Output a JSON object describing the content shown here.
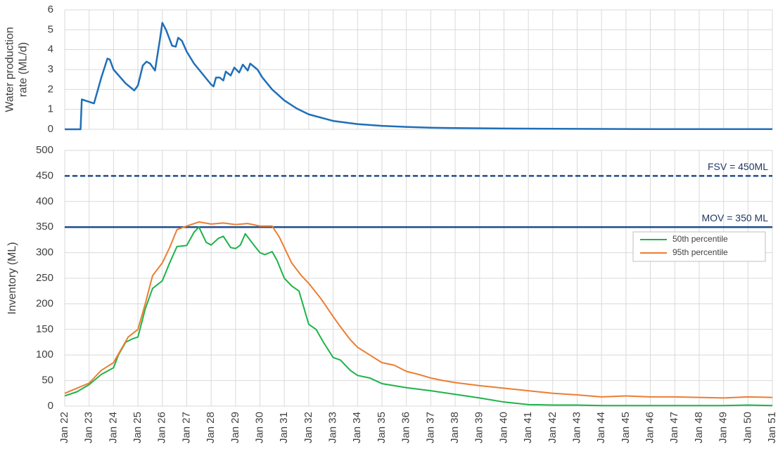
{
  "chart_data": [
    {
      "type": "line",
      "ylabel": [
        "Water production",
        "rate (ML/d)"
      ],
      "xlim": [
        2022,
        2051
      ],
      "xticks": [
        2022,
        2023,
        2024,
        2025,
        2026,
        2027,
        2028,
        2029,
        2030,
        2031,
        2032,
        2033,
        2034,
        2035,
        2036,
        2037,
        2038,
        2039,
        2040,
        2041,
        2042,
        2043,
        2044,
        2045,
        2046,
        2047,
        2048,
        2049,
        2050,
        2051
      ],
      "ylim": [
        0,
        6
      ],
      "yticks": [
        0,
        1,
        2,
        3,
        4,
        5,
        6
      ],
      "grid": true,
      "series": [
        {
          "color": "#1f6fb8",
          "x": [
            2022,
            2022.65,
            2022.7,
            2023.2,
            2023.5,
            2023.75,
            2023.85,
            2024.0,
            2024.5,
            2024.85,
            2025.0,
            2025.2,
            2025.35,
            2025.5,
            2025.7,
            2025.9,
            2026.0,
            2026.15,
            2026.4,
            2026.55,
            2026.65,
            2026.8,
            2027.0,
            2027.3,
            2027.7,
            2028.0,
            2028.1,
            2028.2,
            2028.35,
            2028.5,
            2028.6,
            2028.8,
            2028.95,
            2029.15,
            2029.3,
            2029.5,
            2029.6,
            2029.9,
            2030.1,
            2030.5,
            2031,
            2031.5,
            2032,
            2033,
            2034,
            2035,
            2036,
            2037,
            2038,
            2040,
            2043,
            2046,
            2051
          ],
          "values": [
            0,
            0,
            1.5,
            1.3,
            2.6,
            3.55,
            3.5,
            3.0,
            2.3,
            1.95,
            2.2,
            3.2,
            3.4,
            3.3,
            2.95,
            4.5,
            5.35,
            5.0,
            4.2,
            4.15,
            4.6,
            4.45,
            3.9,
            3.3,
            2.7,
            2.25,
            2.15,
            2.6,
            2.6,
            2.45,
            2.9,
            2.7,
            3.1,
            2.85,
            3.25,
            2.95,
            3.3,
            3.0,
            2.6,
            2.0,
            1.45,
            1.05,
            0.75,
            0.42,
            0.26,
            0.17,
            0.12,
            0.08,
            0.06,
            0.04,
            0.02,
            0.01,
            0.01
          ]
        }
      ]
    },
    {
      "type": "line",
      "ylabel": "Inventory  (ML)",
      "xlim": [
        2022,
        2051
      ],
      "xticks": [
        {
          "value": 2022,
          "label": "Jan 22"
        },
        {
          "value": 2023,
          "label": "Jan 23"
        },
        {
          "value": 2024,
          "label": "Jan 24"
        },
        {
          "value": 2025,
          "label": "Jan 25"
        },
        {
          "value": 2026,
          "label": "Jan 26"
        },
        {
          "value": 2027,
          "label": "Jan 27"
        },
        {
          "value": 2028,
          "label": "Jan 28"
        },
        {
          "value": 2029,
          "label": "Jan 29"
        },
        {
          "value": 2030,
          "label": "Jan 30"
        },
        {
          "value": 2031,
          "label": "Jan 31"
        },
        {
          "value": 2032,
          "label": "Jan 32"
        },
        {
          "value": 2033,
          "label": "Jan 33"
        },
        {
          "value": 2034,
          "label": "Jan 34"
        },
        {
          "value": 2035,
          "label": "Jan 35"
        },
        {
          "value": 2036,
          "label": "Jan 36"
        },
        {
          "value": 2037,
          "label": "Jan 37"
        },
        {
          "value": 2038,
          "label": "Jan 38"
        },
        {
          "value": 2039,
          "label": "Jan 39"
        },
        {
          "value": 2040,
          "label": "Jan 40"
        },
        {
          "value": 2041,
          "label": "Jan 41"
        },
        {
          "value": 2042,
          "label": "Jan 42"
        },
        {
          "value": 2043,
          "label": "Jan 43"
        },
        {
          "value": 2044,
          "label": "Jan 44"
        },
        {
          "value": 2045,
          "label": "Jan 45"
        },
        {
          "value": 2046,
          "label": "Jan 46"
        },
        {
          "value": 2047,
          "label": "Jan 47"
        },
        {
          "value": 2048,
          "label": "Jan 48"
        },
        {
          "value": 2049,
          "label": "Jan 49"
        },
        {
          "value": 2050,
          "label": "Jan 50"
        },
        {
          "value": 2051,
          "label": "Jan 51"
        }
      ],
      "ylim": [
        0,
        500
      ],
      "yticks": [
        0,
        50,
        100,
        150,
        200,
        250,
        300,
        350,
        400,
        450,
        500
      ],
      "grid": true,
      "legend": "upper right",
      "reference_lines": [
        {
          "value": 450,
          "label": "FSV = 450ML",
          "style": "dashed",
          "color": "#1f4e8c"
        },
        {
          "value": 350,
          "label": "MOV = 350 ML",
          "style": "solid",
          "color": "#1f4e8c"
        }
      ],
      "series": [
        {
          "name": "50th percentile",
          "color": "#1db34a",
          "x": [
            2022,
            2022.5,
            2023,
            2023.5,
            2024,
            2024.2,
            2024.5,
            2024.8,
            2025,
            2025.3,
            2025.6,
            2026,
            2026.3,
            2026.6,
            2027,
            2027.3,
            2027.5,
            2027.8,
            2028,
            2028.3,
            2028.5,
            2028.8,
            2029,
            2029.2,
            2029.4,
            2029.7,
            2030,
            2030.2,
            2030.5,
            2030.7,
            2031,
            2031.3,
            2031.6,
            2032,
            2032.3,
            2032.6,
            2033,
            2033.3,
            2033.7,
            2034,
            2034.5,
            2035,
            2036,
            2037,
            2038,
            2039,
            2040,
            2041,
            2042,
            2043,
            2044,
            2045,
            2046,
            2047,
            2048,
            2049,
            2050,
            2051
          ],
          "values": [
            20,
            28,
            42,
            62,
            75,
            100,
            125,
            132,
            135,
            190,
            230,
            245,
            280,
            312,
            314,
            340,
            350,
            320,
            315,
            328,
            332,
            310,
            308,
            315,
            337,
            318,
            300,
            296,
            302,
            285,
            250,
            235,
            225,
            160,
            150,
            125,
            95,
            90,
            70,
            60,
            55,
            44,
            36,
            30,
            23,
            16,
            8,
            3,
            2,
            2,
            1,
            1,
            1,
            1,
            1,
            1,
            2,
            1
          ]
        },
        {
          "name": "95th percentile",
          "color": "#ed7d31",
          "x": [
            2022,
            2022.5,
            2023,
            2023.5,
            2024,
            2024.3,
            2024.6,
            2025,
            2025.3,
            2025.6,
            2026,
            2026.3,
            2026.6,
            2027,
            2027.5,
            2028,
            2028.5,
            2029,
            2029.5,
            2030,
            2030.5,
            2030.8,
            2031,
            2031.3,
            2031.7,
            2032,
            2032.5,
            2033,
            2033.3,
            2033.7,
            2034,
            2034.5,
            2035,
            2035.5,
            2036,
            2036.5,
            2037,
            2037.5,
            2038,
            2039,
            2040,
            2041,
            2042,
            2043,
            2044,
            2045,
            2046,
            2047,
            2048,
            2049,
            2050,
            2051
          ],
          "values": [
            25,
            35,
            45,
            70,
            85,
            110,
            135,
            150,
            200,
            255,
            280,
            310,
            345,
            352,
            360,
            356,
            358,
            355,
            357,
            352,
            352,
            330,
            310,
            280,
            255,
            240,
            210,
            175,
            155,
            130,
            115,
            100,
            85,
            80,
            68,
            62,
            55,
            50,
            46,
            40,
            35,
            30,
            25,
            22,
            18,
            20,
            18,
            18,
            17,
            16,
            18,
            17
          ]
        }
      ]
    }
  ]
}
